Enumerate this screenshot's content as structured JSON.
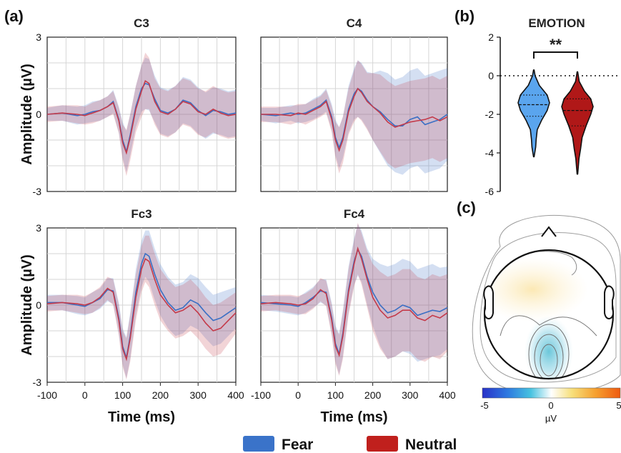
{
  "figure": {
    "panel_labels": [
      "(a)",
      "(b)",
      "(c)"
    ],
    "legend": [
      {
        "label": "Fear",
        "color": "#3a73c9"
      },
      {
        "label": "Neutral",
        "color": "#c0201d"
      }
    ]
  },
  "chart_data": [
    {
      "type": "line",
      "title": "C3",
      "ylabel": "Amplitude (µV)",
      "xlabel": "",
      "xlim": [
        -100,
        400
      ],
      "ylim": [
        -3,
        3
      ],
      "xticks": [
        "-100",
        "0",
        "100",
        "200",
        "300",
        "400"
      ],
      "yticks": [
        "3",
        "0",
        "-3"
      ],
      "grid": true,
      "series": [
        {
          "name": "Fear",
          "color": "#3a6fc4",
          "x": [
            -100,
            -60,
            -20,
            0,
            20,
            40,
            60,
            75,
            90,
            100,
            110,
            120,
            135,
            150,
            160,
            170,
            185,
            200,
            220,
            240,
            260,
            280,
            300,
            320,
            340,
            360,
            380,
            400
          ],
          "y": [
            0,
            0.05,
            -0.05,
            0,
            0.1,
            0.15,
            0.3,
            0.5,
            -0.2,
            -1.0,
            -1.45,
            -0.8,
            0.3,
            1.0,
            1.2,
            1.15,
            0.6,
            0.15,
            0.05,
            0.2,
            0.55,
            0.45,
            0.15,
            -0.05,
            0.15,
            0.1,
            0.0,
            0.05
          ],
          "band": [
            0.25,
            0.3,
            0.35,
            0.35,
            0.4,
            0.4,
            0.4,
            0.45,
            0.5,
            0.7,
            0.8,
            0.8,
            0.8,
            0.9,
            1.0,
            1.0,
            0.9,
            0.9,
            0.9,
            0.9,
            0.9,
            0.9,
            0.9,
            0.9,
            0.9,
            0.9,
            0.9,
            0.9
          ]
        },
        {
          "name": "Neutral",
          "color": "#c43a4a",
          "x": [
            -100,
            -60,
            -20,
            0,
            20,
            40,
            60,
            75,
            90,
            100,
            110,
            120,
            135,
            150,
            160,
            170,
            185,
            200,
            220,
            240,
            260,
            280,
            300,
            320,
            340,
            360,
            380,
            400
          ],
          "y": [
            0,
            0.05,
            0.0,
            -0.05,
            0.05,
            0.15,
            0.3,
            0.45,
            -0.25,
            -1.1,
            -1.5,
            -0.9,
            0.2,
            0.9,
            1.3,
            1.2,
            0.5,
            0.1,
            0.0,
            0.2,
            0.5,
            0.4,
            0.1,
            0.0,
            0.2,
            0.05,
            -0.05,
            0.0
          ],
          "band": [
            0.3,
            0.3,
            0.35,
            0.35,
            0.4,
            0.4,
            0.4,
            0.45,
            0.5,
            0.7,
            0.9,
            0.9,
            0.9,
            1.0,
            1.1,
            1.0,
            0.9,
            0.9,
            0.9,
            0.9,
            0.9,
            0.9,
            0.9,
            0.9,
            0.9,
            0.9,
            0.9,
            0.9
          ]
        }
      ]
    },
    {
      "type": "line",
      "title": "C4",
      "ylabel": "",
      "xlabel": "",
      "xlim": [
        -100,
        400
      ],
      "ylim": [
        -3,
        3
      ],
      "xticks": [
        "-100",
        "0",
        "100",
        "200",
        "300",
        "400"
      ],
      "yticks": [
        "3",
        "0",
        "-3"
      ],
      "grid": true,
      "series": [
        {
          "name": "Fear",
          "color": "#3a6fc4",
          "x": [
            -100,
            -60,
            -20,
            0,
            20,
            40,
            60,
            75,
            90,
            100,
            110,
            120,
            135,
            150,
            160,
            170,
            185,
            200,
            220,
            240,
            260,
            280,
            300,
            320,
            340,
            360,
            380,
            400
          ],
          "y": [
            0,
            -0.05,
            0.05,
            0,
            0.05,
            0.2,
            0.35,
            0.55,
            -0.1,
            -0.9,
            -1.3,
            -0.9,
            0.2,
            0.8,
            1.0,
            0.9,
            0.55,
            0.3,
            0.1,
            -0.2,
            -0.45,
            -0.45,
            -0.2,
            -0.1,
            -0.4,
            -0.3,
            -0.2,
            0.0
          ],
          "band": [
            0.25,
            0.3,
            0.3,
            0.35,
            0.35,
            0.4,
            0.4,
            0.45,
            0.5,
            0.7,
            0.8,
            0.8,
            0.9,
            1.0,
            1.1,
            1.1,
            1.1,
            1.3,
            1.6,
            1.8,
            1.8,
            1.9,
            1.9,
            1.9,
            1.9,
            1.9,
            1.9,
            1.8
          ]
        },
        {
          "name": "Neutral",
          "color": "#c43a4a",
          "x": [
            -100,
            -60,
            -20,
            0,
            20,
            40,
            60,
            75,
            90,
            100,
            110,
            120,
            135,
            150,
            160,
            170,
            185,
            200,
            220,
            240,
            260,
            280,
            300,
            320,
            340,
            360,
            380,
            400
          ],
          "y": [
            0,
            0.0,
            -0.05,
            0.05,
            0.0,
            0.15,
            0.3,
            0.5,
            -0.2,
            -1.0,
            -1.4,
            -1.0,
            0.1,
            0.7,
            1.0,
            0.85,
            0.5,
            0.3,
            0.05,
            -0.3,
            -0.5,
            -0.4,
            -0.3,
            -0.25,
            -0.2,
            -0.1,
            -0.25,
            -0.1
          ],
          "band": [
            0.3,
            0.3,
            0.35,
            0.35,
            0.4,
            0.4,
            0.4,
            0.45,
            0.5,
            0.7,
            0.9,
            0.9,
            0.9,
            1.0,
            1.1,
            1.1,
            1.1,
            1.3,
            1.5,
            1.6,
            1.6,
            1.6,
            1.6,
            1.6,
            1.6,
            1.6,
            1.6,
            1.6
          ]
        }
      ]
    },
    {
      "type": "line",
      "title": "Fc3",
      "ylabel": "Amplitude (µV)",
      "xlabel": "Time (ms)",
      "xlim": [
        -100,
        400
      ],
      "ylim": [
        -3,
        3
      ],
      "xticks": [
        "-100",
        "0",
        "100",
        "200",
        "300",
        "400"
      ],
      "yticks": [
        "3",
        "0",
        "-3"
      ],
      "grid": true,
      "series": [
        {
          "name": "Fear",
          "color": "#3a6fc4",
          "x": [
            -100,
            -60,
            -20,
            0,
            20,
            40,
            60,
            75,
            90,
            100,
            110,
            120,
            135,
            150,
            160,
            170,
            185,
            200,
            220,
            240,
            260,
            280,
            300,
            320,
            340,
            360,
            380,
            400
          ],
          "y": [
            0.1,
            0.1,
            0.0,
            -0.05,
            0.1,
            0.25,
            0.6,
            0.55,
            -0.5,
            -1.6,
            -2.05,
            -1.2,
            0.5,
            1.6,
            2.0,
            1.9,
            1.2,
            0.6,
            0.1,
            -0.2,
            -0.1,
            0.2,
            0.05,
            -0.3,
            -0.6,
            -0.5,
            -0.3,
            -0.1
          ],
          "band": [
            0.3,
            0.3,
            0.35,
            0.35,
            0.4,
            0.4,
            0.45,
            0.5,
            0.6,
            0.7,
            0.8,
            0.9,
            0.9,
            0.9,
            0.9,
            1.0,
            1.0,
            1.0,
            1.0,
            1.0,
            1.0,
            1.0,
            1.0,
            1.0,
            1.0,
            1.0,
            0.9,
            0.8
          ]
        },
        {
          "name": "Neutral",
          "color": "#c43a4a",
          "x": [
            -100,
            -60,
            -20,
            0,
            20,
            40,
            60,
            75,
            90,
            100,
            110,
            120,
            135,
            150,
            160,
            170,
            185,
            200,
            220,
            240,
            260,
            280,
            300,
            320,
            340,
            360,
            380,
            400
          ],
          "y": [
            0.05,
            0.1,
            0.05,
            0.0,
            0.1,
            0.3,
            0.65,
            0.5,
            -0.6,
            -1.7,
            -2.1,
            -1.3,
            0.3,
            1.4,
            1.8,
            1.7,
            1.0,
            0.4,
            0.0,
            -0.3,
            -0.2,
            0.0,
            -0.3,
            -0.7,
            -1.0,
            -0.9,
            -0.6,
            -0.3
          ],
          "band": [
            0.3,
            0.3,
            0.35,
            0.35,
            0.4,
            0.4,
            0.45,
            0.5,
            0.6,
            0.7,
            0.8,
            0.9,
            0.9,
            0.9,
            0.9,
            1.0,
            1.0,
            1.0,
            1.0,
            1.0,
            1.0,
            1.0,
            1.0,
            1.0,
            1.0,
            1.0,
            0.9,
            0.8
          ]
        }
      ]
    },
    {
      "type": "line",
      "title": "Fc4",
      "ylabel": "",
      "xlabel": "Time (ms)",
      "xlim": [
        -100,
        400
      ],
      "ylim": [
        -3,
        3
      ],
      "xticks": [
        "-100",
        "0",
        "100",
        "200",
        "300",
        "400"
      ],
      "yticks": [
        "3",
        "0",
        "-3"
      ],
      "grid": true,
      "series": [
        {
          "name": "Fear",
          "color": "#3a6fc4",
          "x": [
            -100,
            -60,
            -20,
            0,
            20,
            40,
            60,
            75,
            90,
            100,
            110,
            120,
            135,
            150,
            160,
            170,
            185,
            200,
            220,
            240,
            260,
            280,
            300,
            320,
            340,
            360,
            380,
            400
          ],
          "y": [
            0.1,
            0.05,
            0.0,
            -0.05,
            0.1,
            0.3,
            0.55,
            0.5,
            -0.5,
            -1.5,
            -1.9,
            -1.1,
            0.6,
            1.7,
            2.15,
            1.9,
            1.1,
            0.5,
            0.0,
            -0.3,
            -0.2,
            0.0,
            -0.1,
            -0.4,
            -0.3,
            -0.2,
            -0.25,
            -0.1
          ],
          "band": [
            0.3,
            0.3,
            0.35,
            0.35,
            0.4,
            0.4,
            0.45,
            0.5,
            0.6,
            0.7,
            0.8,
            0.9,
            0.9,
            0.9,
            1.0,
            1.0,
            1.1,
            1.3,
            1.6,
            1.8,
            1.8,
            1.8,
            1.8,
            1.8,
            1.8,
            1.8,
            1.7,
            1.6
          ]
        },
        {
          "name": "Neutral",
          "color": "#c43a4a",
          "x": [
            -100,
            -60,
            -20,
            0,
            20,
            40,
            60,
            75,
            90,
            100,
            110,
            120,
            135,
            150,
            160,
            170,
            185,
            200,
            220,
            240,
            260,
            280,
            300,
            320,
            340,
            360,
            380,
            400
          ],
          "y": [
            0.05,
            0.1,
            0.05,
            0.0,
            0.05,
            0.25,
            0.6,
            0.45,
            -0.6,
            -1.6,
            -1.95,
            -1.2,
            0.5,
            1.6,
            2.2,
            1.8,
            1.0,
            0.3,
            -0.2,
            -0.5,
            -0.4,
            -0.2,
            -0.2,
            -0.5,
            -0.6,
            -0.4,
            -0.5,
            -0.3
          ],
          "band": [
            0.3,
            0.3,
            0.35,
            0.35,
            0.4,
            0.4,
            0.45,
            0.5,
            0.6,
            0.7,
            0.8,
            0.9,
            0.9,
            0.9,
            1.0,
            1.0,
            1.1,
            1.3,
            1.5,
            1.6,
            1.6,
            1.6,
            1.6,
            1.6,
            1.6,
            1.6,
            1.6,
            1.5
          ]
        }
      ]
    },
    {
      "type": "violin",
      "title": "EMOTION",
      "ylim": [
        -6,
        2
      ],
      "yticks": [
        "2",
        "0",
        "-2",
        "-4",
        "-6"
      ],
      "reference_line": 0,
      "significance": "**",
      "series": [
        {
          "name": "Fear",
          "color": "#5aa5ee",
          "median": -1.5,
          "q1": -2.1,
          "q3": -1.0,
          "min": -4.2,
          "max": 0.3,
          "profile": [
            {
              "y": 0.3,
              "w": 0.02
            },
            {
              "y": 0.0,
              "w": 0.08
            },
            {
              "y": -0.5,
              "w": 0.35
            },
            {
              "y": -1.0,
              "w": 0.85
            },
            {
              "y": -1.4,
              "w": 1.0
            },
            {
              "y": -1.8,
              "w": 0.85
            },
            {
              "y": -2.3,
              "w": 0.5
            },
            {
              "y": -2.8,
              "w": 0.22
            },
            {
              "y": -3.3,
              "w": 0.15
            },
            {
              "y": -3.7,
              "w": 0.12
            },
            {
              "y": -4.0,
              "w": 0.06
            },
            {
              "y": -4.2,
              "w": 0.02
            }
          ]
        },
        {
          "name": "Neutral",
          "color": "#b01818",
          "median": -1.8,
          "q1": -2.6,
          "q3": -1.2,
          "min": -5.1,
          "max": 0.2,
          "profile": [
            {
              "y": 0.2,
              "w": 0.02
            },
            {
              "y": -0.3,
              "w": 0.12
            },
            {
              "y": -0.8,
              "w": 0.45
            },
            {
              "y": -1.2,
              "w": 0.85
            },
            {
              "y": -1.6,
              "w": 1.0
            },
            {
              "y": -2.0,
              "w": 0.85
            },
            {
              "y": -2.6,
              "w": 0.55
            },
            {
              "y": -3.2,
              "w": 0.3
            },
            {
              "y": -3.8,
              "w": 0.2
            },
            {
              "y": -4.3,
              "w": 0.1
            },
            {
              "y": -4.8,
              "w": 0.05
            },
            {
              "y": -5.1,
              "w": 0.02
            }
          ]
        }
      ]
    },
    {
      "type": "heatmap",
      "subtype": "topographic-scalp-map",
      "colorbar": {
        "min": -5,
        "max": 5,
        "ticks": [
          "-5",
          "0",
          "5"
        ],
        "label": "µV"
      },
      "features": [
        {
          "region": "frontal-central",
          "value": 0.8
        },
        {
          "region": "parieto-occipital-midline",
          "value": -1.5
        }
      ]
    }
  ]
}
